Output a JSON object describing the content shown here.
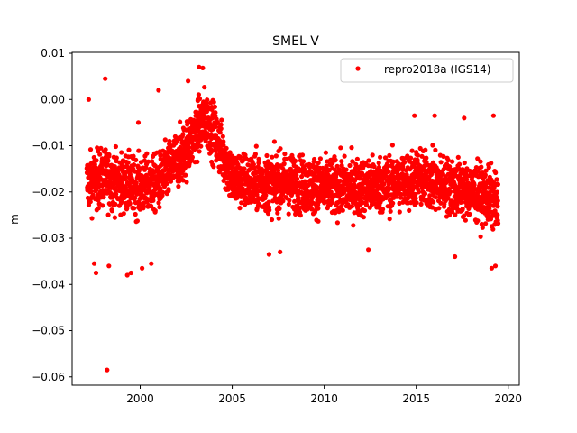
{
  "chart_data": {
    "type": "scatter",
    "title": "SMEL V",
    "xlabel": "",
    "ylabel": "m",
    "xlim": [
      1996.3,
      2020.6
    ],
    "ylim": [
      -0.0618,
      0.0102
    ],
    "x_ticks": [
      2000,
      2005,
      2010,
      2015,
      2020
    ],
    "x_tick_labels": [
      "2000",
      "2005",
      "2010",
      "2015",
      "2020"
    ],
    "y_ticks": [
      0.01,
      0.0,
      -0.01,
      -0.02,
      -0.03,
      -0.04,
      -0.05,
      -0.06
    ],
    "y_tick_labels": [
      "0.01",
      "0.00",
      "−0.01",
      "−0.02",
      "−0.03",
      "−0.04",
      "−0.05",
      "−0.06"
    ],
    "grid": false,
    "legend": {
      "position": "top-right",
      "entries": [
        "repro2018a (IGS14)"
      ]
    },
    "series": [
      {
        "name": "repro2018a (IGS14)",
        "color": "#ff0000",
        "marker": "circle",
        "trend": {
          "x": [
            1997.1,
            1998.0,
            1999.0,
            2000.0,
            2001.0,
            2001.8,
            2002.5,
            2003.0,
            2003.5,
            2004.0,
            2004.5,
            2005.0,
            2006.0,
            2008.0,
            2010.0,
            2012.0,
            2014.0,
            2015.0,
            2016.0,
            2017.0,
            2018.0,
            2019.0,
            2019.45
          ],
          "y": [
            -0.018,
            -0.017,
            -0.018,
            -0.019,
            -0.018,
            -0.014,
            -0.011,
            -0.007,
            -0.004,
            -0.007,
            -0.012,
            -0.017,
            -0.018,
            -0.018,
            -0.019,
            -0.019,
            -0.018,
            -0.017,
            -0.018,
            -0.019,
            -0.02,
            -0.021,
            -0.023
          ]
        },
        "spread": 0.0055,
        "outliers": [
          {
            "x": 1997.2,
            "y": 0.0
          },
          {
            "x": 1998.1,
            "y": 0.0045
          },
          {
            "x": 1998.2,
            "y": -0.0585
          },
          {
            "x": 1997.5,
            "y": -0.0355
          },
          {
            "x": 1997.6,
            "y": -0.0375
          },
          {
            "x": 1998.3,
            "y": -0.036
          },
          {
            "x": 1999.3,
            "y": -0.038
          },
          {
            "x": 1999.5,
            "y": -0.0375
          },
          {
            "x": 2000.1,
            "y": -0.0365
          },
          {
            "x": 2000.6,
            "y": -0.0355
          },
          {
            "x": 1999.9,
            "y": -0.005
          },
          {
            "x": 2001.0,
            "y": 0.002
          },
          {
            "x": 2002.6,
            "y": 0.004
          },
          {
            "x": 2003.2,
            "y": 0.007
          },
          {
            "x": 2003.4,
            "y": 0.0068
          },
          {
            "x": 2007.0,
            "y": -0.0335
          },
          {
            "x": 2007.6,
            "y": -0.033
          },
          {
            "x": 2014.9,
            "y": -0.0035
          },
          {
            "x": 2016.0,
            "y": -0.0035
          },
          {
            "x": 2017.6,
            "y": -0.004
          },
          {
            "x": 2019.2,
            "y": -0.0035
          },
          {
            "x": 2019.3,
            "y": -0.036
          },
          {
            "x": 2019.1,
            "y": -0.0365
          },
          {
            "x": 2017.1,
            "y": -0.034
          },
          {
            "x": 2012.4,
            "y": -0.0325
          }
        ]
      }
    ]
  }
}
